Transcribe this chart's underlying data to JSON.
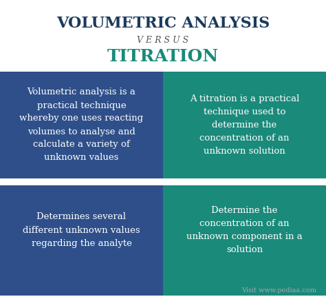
{
  "title1": "VOLUMETRIC ANALYSIS",
  "versus": "V E R S U S",
  "title2": "TITRATION",
  "left_color": "#2e4f8a",
  "right_color": "#1a8a7a",
  "bg_color": "#ffffff",
  "title1_color": "#1a3a5c",
  "versus_color": "#555555",
  "title2_color": "#1a8a7a",
  "text_color": "#ffffff",
  "dot_color": "#ffffff",
  "watermark_color": "#aaaaaa",
  "top_left_text": "Volumetric analysis is a\npractical technique\nwhereby one uses reacting\nvolumes to analyse and\ncalculate a variety of\nunknown values",
  "top_right_text": "A titration is a practical\ntechnique used to\ndetermine the\nconcentration of an\nunknown solution",
  "bottom_left_text": "Determines several\ndifferent unknown values\nregarding the analyte",
  "bottom_right_text": "Determine the\nconcentration of an\nunknown component in a\nsolution",
  "watermark": "Visit www.pediaa.com",
  "fig_width": 4.74,
  "fig_height": 4.34,
  "dpi": 100
}
